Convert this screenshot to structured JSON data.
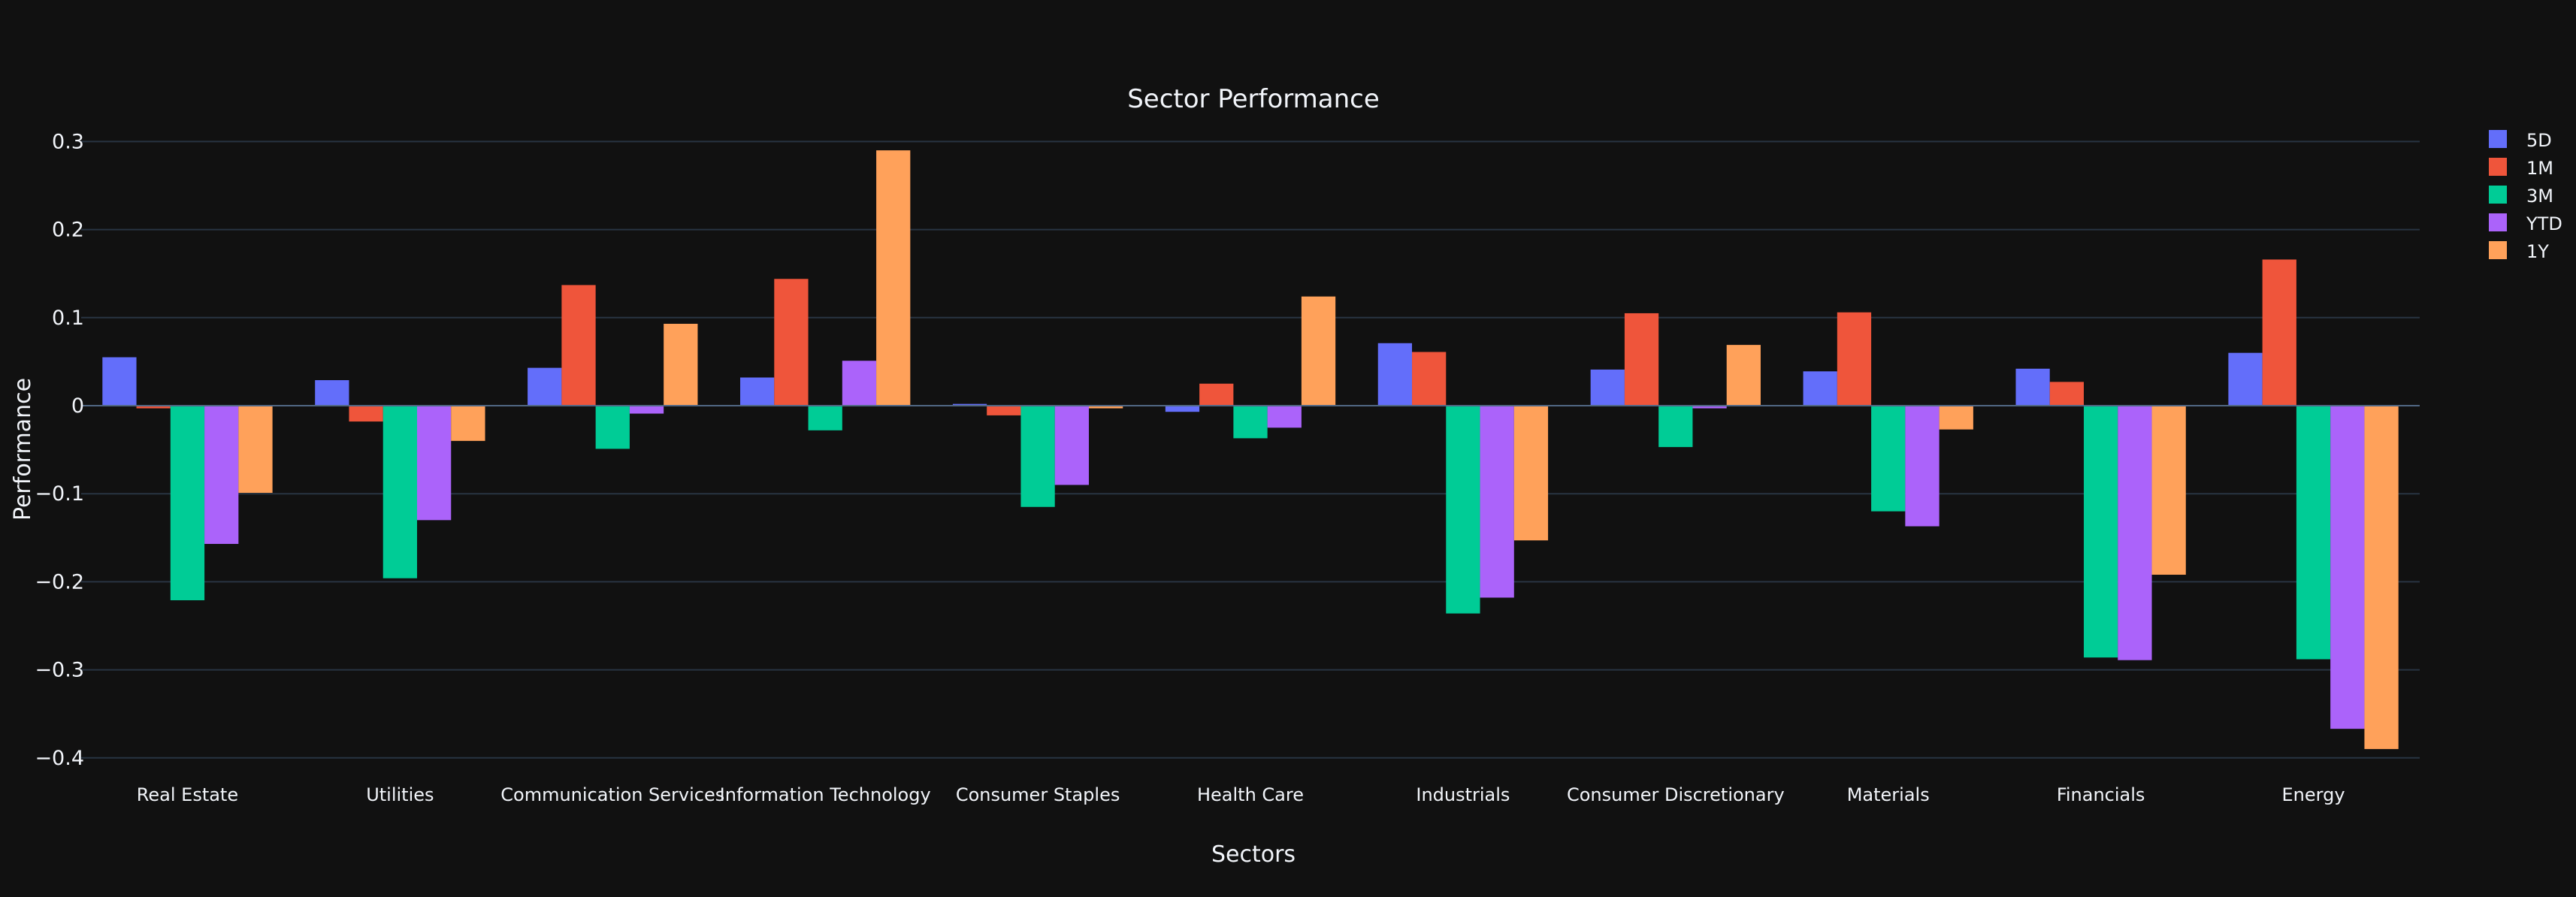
{
  "chart_data": {
    "type": "bar",
    "title": "Sector Performance",
    "xlabel": "Sectors",
    "ylabel": "Performance",
    "ylim": [
      -0.42,
      0.31
    ],
    "yticks": [
      0.3,
      0.2,
      0.1,
      0,
      -0.1,
      -0.2,
      -0.3,
      -0.4
    ],
    "ytick_labels": [
      "0.3",
      "0.2",
      "0.1",
      "0",
      "−0.1",
      "−0.2",
      "−0.3",
      "−0.4"
    ],
    "grid": true,
    "legend_position": "top-right",
    "categories": [
      "Real Estate",
      "Utilities",
      "Communication Services",
      "Information Technology",
      "Consumer Staples",
      "Health Care",
      "Industrials",
      "Consumer Discretionary",
      "Materials",
      "Financials",
      "Energy"
    ],
    "series": [
      {
        "name": "5D",
        "color": "#636efa",
        "values": [
          0.055,
          0.029,
          0.043,
          0.032,
          0.002,
          -0.007,
          0.071,
          0.041,
          0.039,
          0.042,
          0.06
        ]
      },
      {
        "name": "1M",
        "color": "#ef553b",
        "values": [
          -0.003,
          -0.018,
          0.137,
          0.144,
          -0.011,
          0.025,
          0.061,
          0.105,
          0.106,
          0.027,
          0.166
        ]
      },
      {
        "name": "3M",
        "color": "#00cc96",
        "values": [
          -0.221,
          -0.196,
          -0.049,
          -0.028,
          -0.115,
          -0.037,
          -0.236,
          -0.047,
          -0.12,
          -0.286,
          -0.288
        ]
      },
      {
        "name": "YTD",
        "color": "#ab63fa",
        "values": [
          -0.157,
          -0.13,
          -0.009,
          0.051,
          -0.09,
          -0.025,
          -0.218,
          -0.003,
          -0.137,
          -0.289,
          -0.367
        ]
      },
      {
        "name": "1Y",
        "color": "#ffa15a",
        "values": [
          -0.099,
          -0.04,
          0.093,
          0.29,
          -0.003,
          0.124,
          -0.153,
          0.069,
          -0.027,
          -0.192,
          -0.39
        ]
      }
    ]
  }
}
